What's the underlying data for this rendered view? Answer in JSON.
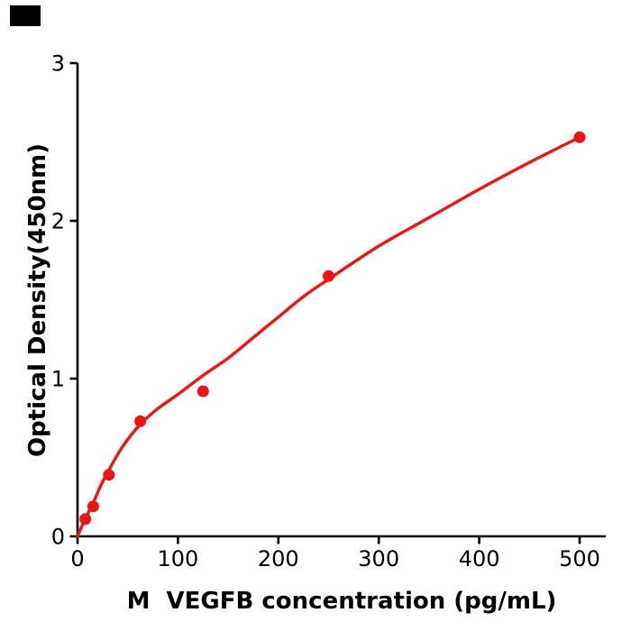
{
  "figure": {
    "background": "#ffffff",
    "corner_artifact_color": "#000000"
  },
  "chart_data": {
    "type": "scatter",
    "title": "",
    "xlabel": "M  VEGFB concentration (pg/mL)",
    "ylabel": "Optical Density(450nm)",
    "xlim": [
      0,
      526
    ],
    "ylim": [
      0,
      3
    ],
    "xticks": [
      0,
      100,
      200,
      300,
      400,
      500
    ],
    "yticks": [
      0,
      1,
      2,
      3
    ],
    "grid": false,
    "legend": "none",
    "axis_color": "#000000",
    "series": [
      {
        "name": "standard-points",
        "type": "scatter",
        "color": "#ed1414",
        "points": [
          [
            7.8,
            0.11
          ],
          [
            15.6,
            0.19
          ],
          [
            31.25,
            0.39
          ],
          [
            62.5,
            0.73
          ],
          [
            125,
            0.92
          ],
          [
            250,
            1.65
          ],
          [
            500,
            2.53
          ]
        ]
      },
      {
        "name": "fitted-curve",
        "type": "line",
        "color": "#ed1414",
        "points": [
          [
            0,
            0
          ],
          [
            4,
            0.06
          ],
          [
            7.8,
            0.11
          ],
          [
            11.5,
            0.16
          ],
          [
            15.6,
            0.21
          ],
          [
            23,
            0.32
          ],
          [
            31.25,
            0.42
          ],
          [
            45,
            0.57
          ],
          [
            62.5,
            0.71
          ],
          [
            80,
            0.81
          ],
          [
            100,
            0.9
          ],
          [
            125,
            1.02
          ],
          [
            150,
            1.13
          ],
          [
            175,
            1.26
          ],
          [
            200,
            1.39
          ],
          [
            225,
            1.52
          ],
          [
            250,
            1.63
          ],
          [
            300,
            1.84
          ],
          [
            350,
            2.02
          ],
          [
            400,
            2.2
          ],
          [
            450,
            2.37
          ],
          [
            500,
            2.53
          ]
        ]
      }
    ]
  }
}
